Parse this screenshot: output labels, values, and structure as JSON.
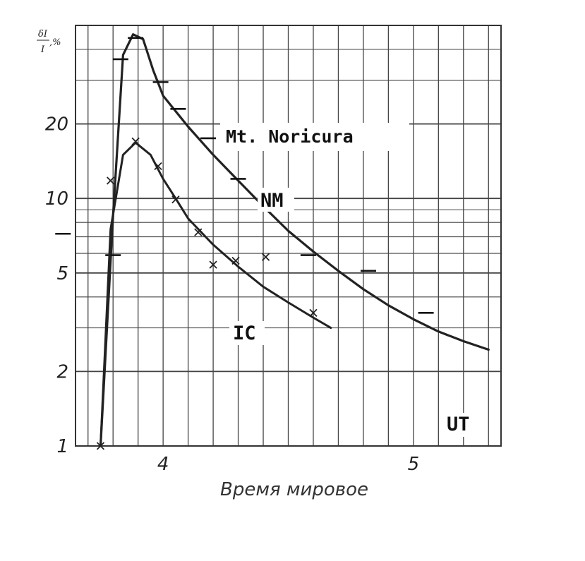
{
  "chart_data": {
    "type": "line",
    "title": "Mt. Noricura",
    "xlabel": "Время мировое",
    "ylabel_numerator": "δI",
    "ylabel_denominator": "I",
    "ylabel_unit": ",%",
    "y_scale": "log",
    "xlim": [
      3.65,
      5.35
    ],
    "ylim": [
      1,
      50
    ],
    "x_ticks": [
      4,
      5
    ],
    "x_tick_labels": [
      "4",
      "5"
    ],
    "y_ticks": [
      1,
      2,
      5,
      10,
      20
    ],
    "y_tick_labels": [
      "1",
      "2",
      "5",
      "10",
      "20"
    ],
    "x_unit_label": "UT",
    "grid": true,
    "series": [
      {
        "name": "NM",
        "marker": "dash",
        "curve": [
          [
            3.75,
            1.0
          ],
          [
            3.8,
            8.5
          ],
          [
            3.84,
            38.0
          ],
          [
            3.88,
            46.0
          ],
          [
            3.92,
            44.0
          ],
          [
            3.96,
            33.0
          ],
          [
            4.0,
            26.0
          ],
          [
            4.1,
            19.5
          ],
          [
            4.2,
            15.0
          ],
          [
            4.3,
            11.8
          ],
          [
            4.4,
            9.3
          ],
          [
            4.5,
            7.4
          ],
          [
            4.6,
            6.1
          ],
          [
            4.7,
            5.1
          ],
          [
            4.8,
            4.3
          ],
          [
            4.9,
            3.7
          ],
          [
            5.0,
            3.25
          ],
          [
            5.1,
            2.9
          ],
          [
            5.2,
            2.65
          ],
          [
            5.3,
            2.45
          ]
        ],
        "points": [
          [
            3.6,
            7.2
          ],
          [
            3.8,
            5.9
          ],
          [
            3.83,
            36.5
          ],
          [
            3.89,
            44.5
          ],
          [
            3.99,
            29.5
          ],
          [
            4.06,
            23.0
          ],
          [
            4.18,
            17.5
          ],
          [
            4.3,
            12.0
          ],
          [
            4.58,
            5.9
          ],
          [
            4.82,
            5.1
          ],
          [
            5.05,
            3.45
          ]
        ]
      },
      {
        "name": "IC",
        "marker": "cross",
        "curve": [
          [
            3.75,
            1.0
          ],
          [
            3.79,
            7.5
          ],
          [
            3.84,
            15.0
          ],
          [
            3.89,
            16.8
          ],
          [
            3.95,
            15.0
          ],
          [
            4.0,
            12.0
          ],
          [
            4.05,
            10.0
          ],
          [
            4.1,
            8.3
          ],
          [
            4.2,
            6.5
          ],
          [
            4.3,
            5.3
          ],
          [
            4.4,
            4.4
          ],
          [
            4.5,
            3.8
          ],
          [
            4.6,
            3.3
          ],
          [
            4.67,
            3.0
          ]
        ],
        "points": [
          [
            3.75,
            1.0
          ],
          [
            3.79,
            11.8
          ],
          [
            3.89,
            17.0
          ],
          [
            3.98,
            13.5
          ],
          [
            4.05,
            9.9
          ],
          [
            4.14,
            7.3
          ],
          [
            4.2,
            5.4
          ],
          [
            4.29,
            5.6
          ],
          [
            4.41,
            5.8
          ],
          [
            4.6,
            3.45
          ]
        ]
      }
    ]
  }
}
